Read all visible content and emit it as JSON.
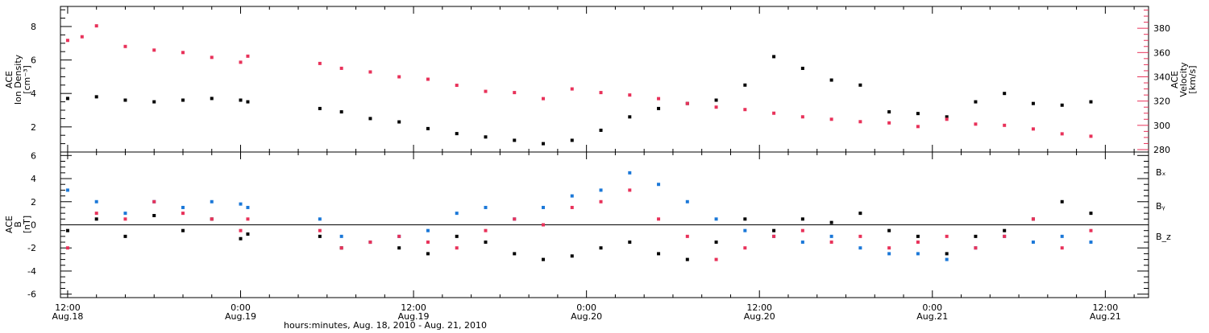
{
  "chart_data": [
    {
      "type": "scatter",
      "panel": "top",
      "ylabel_lines": [
        "ACE",
        "Ion Density",
        "[cm⁻³]"
      ],
      "right_ylabel_lines": [
        "ACE",
        "Velocity",
        "[km/s]"
      ],
      "ylim": [
        0.5,
        9.2
      ],
      "y_ticks": [
        "2",
        "4",
        "6",
        "8"
      ],
      "y2lim": [
        278,
        398
      ],
      "y2_ticks": [
        "280",
        "300",
        "320",
        "340",
        "360",
        "380"
      ],
      "series": [
        {
          "color": "#000000",
          "axis": "left",
          "x": [
            12,
            14,
            16,
            18,
            20,
            22,
            24,
            24.5,
            29.5,
            31,
            33,
            35,
            37,
            39,
            41,
            43,
            45,
            47,
            49,
            51,
            53,
            55,
            57,
            59,
            61,
            63,
            65,
            67,
            69,
            71,
            73,
            75,
            77,
            79,
            81,
            83
          ],
          "values": [
            3.7,
            3.8,
            3.6,
            3.5,
            3.6,
            3.7,
            3.6,
            3.5,
            3.1,
            2.9,
            2.5,
            2.3,
            1.9,
            1.6,
            1.4,
            1.2,
            1.0,
            1.2,
            1.8,
            2.6,
            3.1,
            3.4,
            3.6,
            4.5,
            6.2,
            5.5,
            4.8,
            4.5,
            2.9,
            2.8,
            2.6,
            3.5,
            4.0,
            3.4,
            3.3,
            3.5
          ]
        },
        {
          "color": "#e8325a",
          "axis": "right",
          "x": [
            12,
            13,
            14,
            16,
            18,
            20,
            22,
            24,
            24.5,
            29.5,
            31,
            33,
            35,
            37,
            39,
            41,
            43,
            45,
            47,
            49,
            51,
            53,
            55,
            57,
            59,
            61,
            63,
            65,
            67,
            69,
            71,
            73,
            75,
            77,
            79,
            81,
            83
          ],
          "values": [
            370,
            373,
            382,
            365,
            362,
            360,
            356,
            352,
            357,
            351,
            347,
            344,
            340,
            338,
            333,
            328,
            327,
            322,
            330,
            327,
            325,
            322,
            318,
            315,
            313,
            310,
            307,
            305,
            303,
            302,
            299,
            305,
            301,
            300,
            297,
            293,
            291
          ]
        }
      ]
    },
    {
      "type": "scatter",
      "panel": "bottom",
      "ylabel_lines": [
        "ACE",
        "B",
        "[nT]"
      ],
      "ylim": [
        -6.3,
        6.3
      ],
      "y_ticks": [
        "-6",
        "-4",
        "-2",
        "0",
        "2",
        "4",
        "6"
      ],
      "zero_line": true,
      "series": [
        {
          "name": "Bₓ",
          "color": "#000000",
          "x": [
            12,
            14,
            16,
            18,
            20,
            22,
            24,
            24.5,
            29.5,
            31,
            33,
            35,
            37,
            39,
            41,
            43,
            45,
            47,
            49,
            51,
            53,
            55,
            57,
            59,
            61,
            63,
            65,
            67,
            69,
            71,
            73,
            75,
            77,
            79,
            81,
            83
          ],
          "values": [
            -0.5,
            0.5,
            -1.0,
            0.8,
            -0.5,
            0.5,
            -1.2,
            -0.8,
            -1.0,
            -2.0,
            -1.5,
            -2.0,
            -2.5,
            -1.0,
            -1.5,
            -2.5,
            -3.0,
            -2.7,
            -2.0,
            -1.5,
            -2.5,
            -3.0,
            -1.5,
            0.5,
            -0.5,
            0.5,
            0.2,
            1.0,
            -0.5,
            -1.0,
            -2.5,
            -1.0,
            -0.5,
            0.5,
            2.0,
            1.0
          ]
        },
        {
          "name": "Bᵧ",
          "color": "#1b78d8",
          "x": [
            12,
            14,
            16,
            18,
            20,
            22,
            24,
            24.5,
            29.5,
            31,
            33,
            35,
            37,
            39,
            41,
            43,
            45,
            47,
            49,
            51,
            53,
            55,
            57,
            59,
            61,
            63,
            65,
            67,
            69,
            71,
            73,
            75,
            77,
            79,
            81,
            83
          ],
          "values": [
            3.0,
            2.0,
            1.0,
            2.0,
            1.5,
            2.0,
            1.8,
            1.5,
            0.5,
            -1.0,
            -1.5,
            -1.0,
            -0.5,
            1.0,
            1.5,
            0.5,
            1.5,
            2.5,
            3.0,
            4.5,
            3.5,
            2.0,
            0.5,
            -0.5,
            -1.0,
            -1.5,
            -1.0,
            -2.0,
            -2.5,
            -2.5,
            -3.0,
            -2.0,
            -1.0,
            -1.5,
            -1.0,
            -1.5
          ]
        },
        {
          "name": "B_z",
          "color": "#e8325a",
          "x": [
            12,
            14,
            16,
            18,
            20,
            22,
            24,
            24.5,
            29.5,
            31,
            33,
            35,
            37,
            39,
            41,
            43,
            45,
            47,
            49,
            51,
            53,
            55,
            57,
            59,
            61,
            63,
            65,
            67,
            69,
            71,
            73,
            75,
            77,
            79,
            81,
            83
          ],
          "values": [
            -2.0,
            1.0,
            0.5,
            2.0,
            1.0,
            0.5,
            -0.5,
            0.5,
            -0.5,
            -2.0,
            -1.5,
            -1.0,
            -1.5,
            -2.0,
            -0.5,
            0.5,
            0.0,
            1.5,
            2.0,
            3.0,
            0.5,
            -1.0,
            -3.0,
            -2.0,
            -1.0,
            -0.5,
            -1.5,
            -1.0,
            -2.0,
            -1.5,
            -1.0,
            -2.0,
            -1.0,
            0.5,
            -2.0,
            -0.5
          ]
        }
      ]
    }
  ],
  "xaxis": {
    "xlim": [
      11.5,
      87
    ],
    "ticks": [
      {
        "x": 12,
        "time": "12:00",
        "date": "Aug.18"
      },
      {
        "x": 24,
        "time": "0:00",
        "date": "Aug.19"
      },
      {
        "x": 36,
        "time": "12:00",
        "date": "Aug.19"
      },
      {
        "x": 48,
        "time": "0:00",
        "date": "Aug.20"
      },
      {
        "x": 60,
        "time": "12:00",
        "date": "Aug.20"
      },
      {
        "x": 72,
        "time": "0:00",
        "date": "Aug.21"
      },
      {
        "x": 84,
        "time": "12:00",
        "date": "Aug.21"
      }
    ],
    "label": "hours:minutes, Aug. 18, 2010 - Aug. 21, 2010"
  }
}
